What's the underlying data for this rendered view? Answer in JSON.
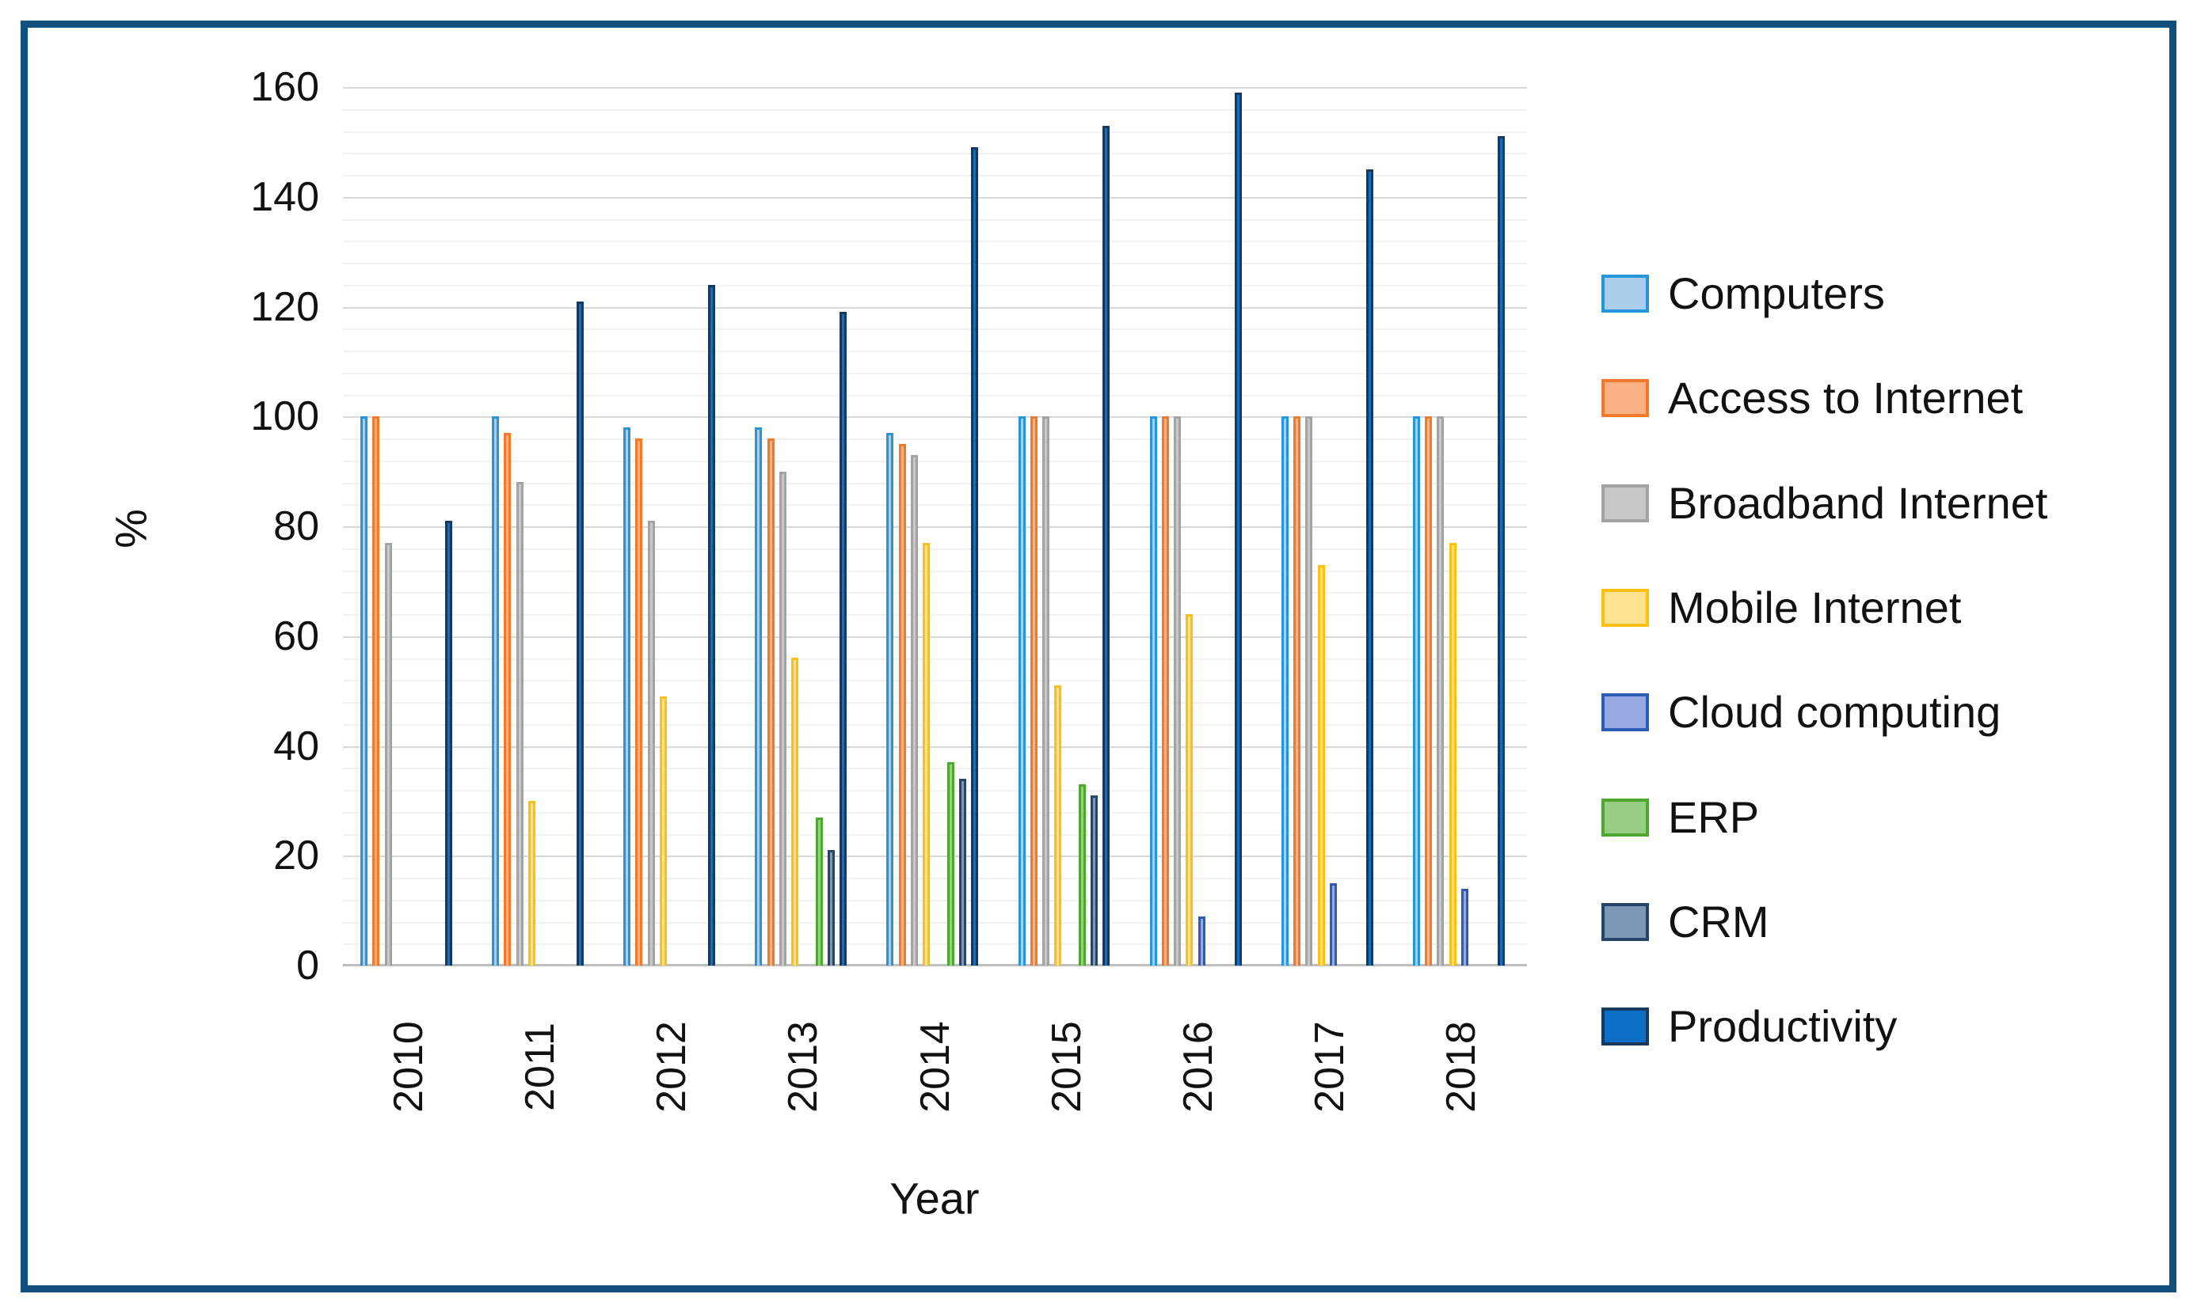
{
  "chart_data": {
    "type": "bar",
    "title": "",
    "xlabel": "Year",
    "ylabel": "%",
    "ylim": [
      0,
      160
    ],
    "y_major_tick": 20,
    "y_minor_grid": 4,
    "y_tick_labels": [
      "0",
      "20",
      "40",
      "60",
      "80",
      "100",
      "120",
      "140",
      "160"
    ],
    "grid": true,
    "legend_position": "right",
    "categories": [
      "2010",
      "2011",
      "2012",
      "2013",
      "2014",
      "2015",
      "2016",
      "2017",
      "2018"
    ],
    "series": [
      {
        "name": "Computers",
        "fill": "#A9CDEB",
        "border": "#2496D9",
        "values": [
          100,
          100,
          98,
          98,
          97,
          100,
          100,
          100,
          100
        ]
      },
      {
        "name": "Access to Internet",
        "fill": "#F9B183",
        "border": "#F1792A",
        "values": [
          100,
          97,
          96,
          96,
          95,
          100,
          100,
          100,
          100
        ]
      },
      {
        "name": "Broadband Internet",
        "fill": "#C8C8C8",
        "border": "#A3A3A3",
        "values": [
          77,
          88,
          81,
          90,
          93,
          100,
          100,
          100,
          100
        ]
      },
      {
        "name": "Mobile Internet",
        "fill": "#FFE18E",
        "border": "#FEC00F",
        "values": [
          0,
          30,
          49,
          56,
          77,
          51,
          64,
          73,
          77
        ]
      },
      {
        "name": "Cloud computing",
        "fill": "#96A9E0",
        "border": "#2A5CB8",
        "values": [
          0,
          0,
          0,
          0,
          0,
          0,
          9,
          15,
          14
        ]
      },
      {
        "name": "ERP",
        "fill": "#97CE83",
        "border": "#4EA72E",
        "values": [
          0,
          0,
          0,
          27,
          37,
          33,
          0,
          0,
          0
        ]
      },
      {
        "name": "CRM",
        "fill": "#7E97B6",
        "border": "#26456B",
        "values": [
          0,
          0,
          0,
          21,
          34,
          31,
          0,
          0,
          0
        ]
      },
      {
        "name": "Productivity",
        "fill": "#0B70C5",
        "border": "#17395E",
        "values": [
          81,
          121,
          124,
          119,
          149,
          153,
          159,
          145,
          151
        ]
      }
    ]
  },
  "frame": {
    "border_color": "#114F7E"
  }
}
